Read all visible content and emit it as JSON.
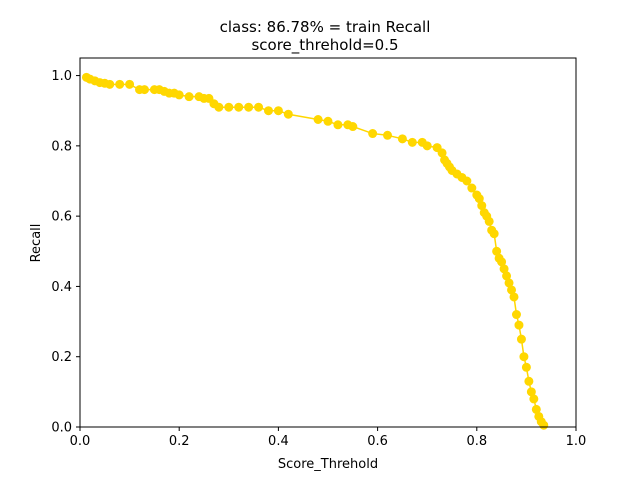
{
  "chart_data": {
    "type": "line",
    "title": "class: 86.78% = train Recall",
    "subtitle": "score_threhold=0.5",
    "xlabel": "Score_Threhold",
    "ylabel": "Recall",
    "xlim": [
      0.0,
      1.0
    ],
    "ylim": [
      0.0,
      1.05
    ],
    "xticks": [
      "0.0",
      "0.2",
      "0.4",
      "0.6",
      "0.8",
      "1.0"
    ],
    "yticks": [
      "0.0",
      "0.2",
      "0.4",
      "0.6",
      "0.8",
      "1.0"
    ],
    "grid": false,
    "legend": "none",
    "series": [
      {
        "color": "#ffd700",
        "marker": "circle",
        "x": [
          0.013,
          0.02,
          0.03,
          0.04,
          0.05,
          0.06,
          0.08,
          0.1,
          0.12,
          0.13,
          0.15,
          0.16,
          0.17,
          0.18,
          0.19,
          0.2,
          0.22,
          0.24,
          0.25,
          0.26,
          0.27,
          0.28,
          0.3,
          0.32,
          0.34,
          0.36,
          0.38,
          0.4,
          0.42,
          0.48,
          0.5,
          0.52,
          0.54,
          0.55,
          0.59,
          0.62,
          0.65,
          0.67,
          0.69,
          0.7,
          0.72,
          0.73,
          0.735,
          0.74,
          0.745,
          0.75,
          0.76,
          0.77,
          0.78,
          0.79,
          0.8,
          0.805,
          0.81,
          0.815,
          0.82,
          0.825,
          0.83,
          0.835,
          0.84,
          0.845,
          0.85,
          0.855,
          0.86,
          0.865,
          0.87,
          0.875,
          0.88,
          0.885,
          0.89,
          0.895,
          0.9,
          0.905,
          0.91,
          0.915,
          0.92,
          0.925,
          0.93,
          0.935
        ],
        "y": [
          0.995,
          0.99,
          0.985,
          0.98,
          0.978,
          0.975,
          0.975,
          0.975,
          0.96,
          0.96,
          0.96,
          0.96,
          0.955,
          0.95,
          0.95,
          0.945,
          0.94,
          0.94,
          0.935,
          0.935,
          0.92,
          0.91,
          0.91,
          0.91,
          0.91,
          0.91,
          0.9,
          0.9,
          0.89,
          0.875,
          0.87,
          0.86,
          0.86,
          0.855,
          0.835,
          0.83,
          0.82,
          0.81,
          0.81,
          0.8,
          0.795,
          0.78,
          0.76,
          0.75,
          0.74,
          0.73,
          0.72,
          0.71,
          0.7,
          0.68,
          0.66,
          0.65,
          0.63,
          0.61,
          0.6,
          0.585,
          0.56,
          0.55,
          0.5,
          0.48,
          0.47,
          0.45,
          0.43,
          0.41,
          0.39,
          0.37,
          0.32,
          0.29,
          0.25,
          0.2,
          0.17,
          0.13,
          0.1,
          0.08,
          0.05,
          0.03,
          0.015,
          0.005
        ]
      }
    ]
  }
}
